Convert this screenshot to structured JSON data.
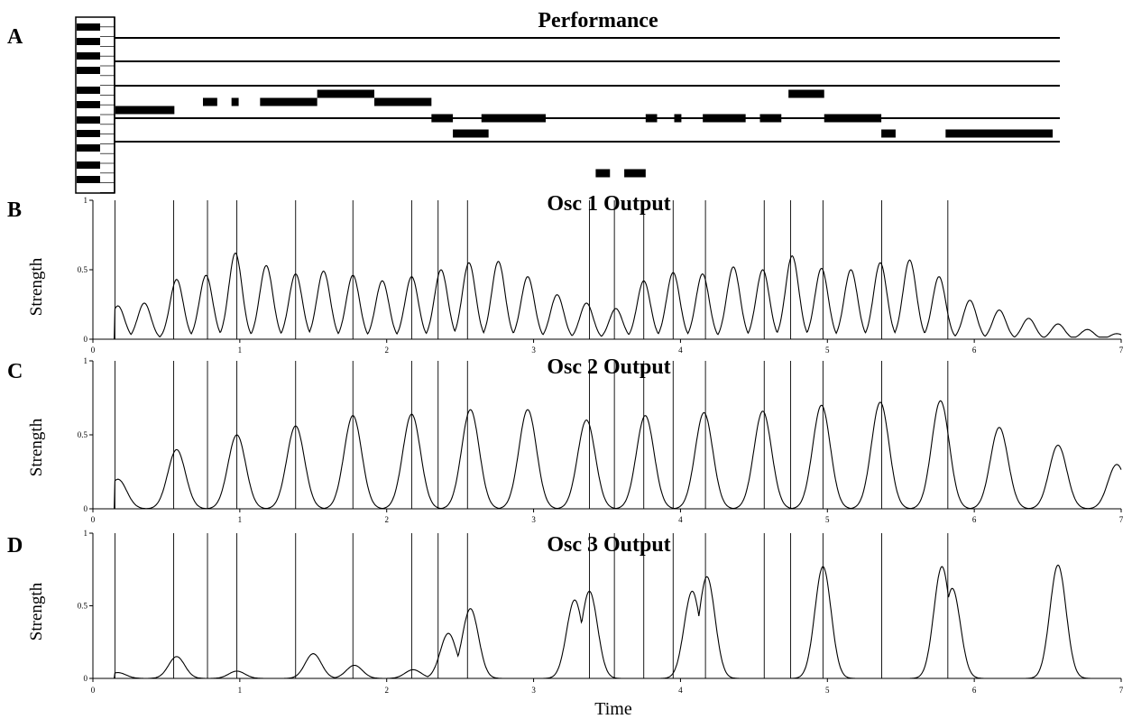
{
  "chart_data": [
    {
      "panel": "A",
      "type": "piano-roll",
      "title": "Performance",
      "notes": [
        {
          "pitch": 2,
          "start": -0.15,
          "end": 0.4
        },
        {
          "pitch": 1,
          "start": 0.6,
          "end": 0.7
        },
        {
          "pitch": 1,
          "start": 0.8,
          "end": 0.85
        },
        {
          "pitch": 1,
          "start": 1.0,
          "end": 1.4
        },
        {
          "pitch": 0,
          "start": 1.4,
          "end": 1.8
        },
        {
          "pitch": 1,
          "start": 1.8,
          "end": 2.2
        },
        {
          "pitch": 4,
          "start": 2.2,
          "end": 2.35
        },
        {
          "pitch": 6,
          "start": 2.35,
          "end": 2.6
        },
        {
          "pitch": 4,
          "start": 2.55,
          "end": 3.0
        },
        {
          "pitch": 8,
          "start": 3.35,
          "end": 3.45
        },
        {
          "pitch": 8,
          "start": 3.55,
          "end": 3.7
        },
        {
          "pitch": 4,
          "start": 3.7,
          "end": 3.78
        },
        {
          "pitch": 4,
          "start": 3.9,
          "end": 3.95
        },
        {
          "pitch": 4,
          "start": 4.1,
          "end": 4.4
        },
        {
          "pitch": 4,
          "start": 4.5,
          "end": 4.65
        },
        {
          "pitch": 0,
          "start": 4.7,
          "end": 4.95
        },
        {
          "pitch": 4,
          "start": 4.95,
          "end": 5.35
        },
        {
          "pitch": 6,
          "start": 5.35,
          "end": 5.45
        },
        {
          "pitch": 6,
          "start": 5.8,
          "end": 6.55
        }
      ]
    },
    {
      "panel": "B",
      "type": "line",
      "title": "Osc 1 Output",
      "ylabel": "Strength",
      "xlim": [
        0,
        7
      ],
      "ylim": [
        0,
        1
      ],
      "yticks": [
        "0",
        "0.5",
        "1"
      ],
      "xticks": [
        "0",
        "1",
        "2",
        "3",
        "4",
        "5",
        "6",
        "7"
      ],
      "onsets": [
        0.15,
        0.55,
        0.78,
        0.98,
        1.38,
        1.77,
        2.17,
        2.35,
        2.55,
        3.38,
        3.55,
        3.75,
        3.95,
        4.17,
        4.57,
        4.75,
        4.97,
        5.37,
        5.82
      ],
      "peaks": [
        {
          "x": 0.17,
          "y": 0.24
        },
        {
          "x": 0.35,
          "y": 0.26
        },
        {
          "x": 0.57,
          "y": 0.43
        },
        {
          "x": 0.77,
          "y": 0.46
        },
        {
          "x": 0.97,
          "y": 0.62
        },
        {
          "x": 1.18,
          "y": 0.53
        },
        {
          "x": 1.38,
          "y": 0.47
        },
        {
          "x": 1.57,
          "y": 0.49
        },
        {
          "x": 1.77,
          "y": 0.46
        },
        {
          "x": 1.97,
          "y": 0.42
        },
        {
          "x": 2.17,
          "y": 0.45
        },
        {
          "x": 2.37,
          "y": 0.5
        },
        {
          "x": 2.56,
          "y": 0.55
        },
        {
          "x": 2.76,
          "y": 0.56
        },
        {
          "x": 2.96,
          "y": 0.45
        },
        {
          "x": 3.16,
          "y": 0.32
        },
        {
          "x": 3.36,
          "y": 0.26
        },
        {
          "x": 3.55,
          "y": 0.12
        },
        {
          "x": 3.56,
          "y": 0.22
        },
        {
          "x": 3.75,
          "y": 0.42
        },
        {
          "x": 3.95,
          "y": 0.48
        },
        {
          "x": 4.15,
          "y": 0.47
        },
        {
          "x": 4.36,
          "y": 0.52
        },
        {
          "x": 4.56,
          "y": 0.5
        },
        {
          "x": 4.76,
          "y": 0.6
        },
        {
          "x": 4.96,
          "y": 0.51
        },
        {
          "x": 5.16,
          "y": 0.5
        },
        {
          "x": 5.36,
          "y": 0.55
        },
        {
          "x": 5.56,
          "y": 0.57
        },
        {
          "x": 5.76,
          "y": 0.45
        },
        {
          "x": 5.97,
          "y": 0.28
        },
        {
          "x": 6.17,
          "y": 0.21
        },
        {
          "x": 6.37,
          "y": 0.15
        },
        {
          "x": 6.57,
          "y": 0.11
        },
        {
          "x": 6.77,
          "y": 0.07
        },
        {
          "x": 6.97,
          "y": 0.04
        }
      ]
    },
    {
      "panel": "C",
      "type": "line",
      "title": "Osc 2 Output",
      "ylabel": "Strength",
      "xlim": [
        0,
        7
      ],
      "ylim": [
        0,
        1
      ],
      "yticks": [
        "0",
        "0.5",
        "1"
      ],
      "xticks": [
        "0",
        "1",
        "2",
        "3",
        "4",
        "5",
        "6",
        "7"
      ],
      "onsets": [
        0.15,
        0.55,
        0.78,
        0.98,
        1.38,
        1.77,
        2.17,
        2.35,
        2.55,
        3.38,
        3.55,
        3.75,
        3.95,
        4.17,
        4.57,
        4.75,
        4.97,
        5.37,
        5.82
      ],
      "peaks": [
        {
          "x": 0.17,
          "y": 0.2
        },
        {
          "x": 0.57,
          "y": 0.4
        },
        {
          "x": 0.98,
          "y": 0.5
        },
        {
          "x": 1.38,
          "y": 0.56
        },
        {
          "x": 1.77,
          "y": 0.63
        },
        {
          "x": 2.17,
          "y": 0.64
        },
        {
          "x": 2.57,
          "y": 0.67
        },
        {
          "x": 2.96,
          "y": 0.67
        },
        {
          "x": 3.36,
          "y": 0.6
        },
        {
          "x": 3.76,
          "y": 0.63
        },
        {
          "x": 4.16,
          "y": 0.65
        },
        {
          "x": 4.56,
          "y": 0.66
        },
        {
          "x": 4.96,
          "y": 0.7
        },
        {
          "x": 5.36,
          "y": 0.72
        },
        {
          "x": 5.77,
          "y": 0.73
        },
        {
          "x": 6.17,
          "y": 0.55
        },
        {
          "x": 6.57,
          "y": 0.43
        },
        {
          "x": 6.97,
          "y": 0.3
        }
      ]
    },
    {
      "panel": "D",
      "type": "line",
      "title": "Osc 3 Output",
      "ylabel": "Strength",
      "xlim": [
        0,
        7
      ],
      "ylim": [
        0,
        1
      ],
      "yticks": [
        "0",
        "0.5",
        "1"
      ],
      "xticks": [
        "0",
        "1",
        "2",
        "3",
        "4",
        "5",
        "6",
        "7"
      ],
      "xlabel": "Time",
      "onsets": [
        0.15,
        0.55,
        0.78,
        0.98,
        1.38,
        1.77,
        2.17,
        2.35,
        2.55,
        3.38,
        3.55,
        3.75,
        3.95,
        4.17,
        4.57,
        4.75,
        4.97,
        5.37,
        5.82
      ],
      "peaks": [
        {
          "x": 0.17,
          "y": 0.04
        },
        {
          "x": 0.57,
          "y": 0.15
        },
        {
          "x": 0.98,
          "y": 0.05
        },
        {
          "x": 1.5,
          "y": 0.17
        },
        {
          "x": 1.78,
          "y": 0.09
        },
        {
          "x": 2.18,
          "y": 0.06
        },
        {
          "x": 2.42,
          "y": 0.31
        },
        {
          "x": 2.57,
          "y": 0.48
        },
        {
          "x": 3.28,
          "y": 0.54
        },
        {
          "x": 3.38,
          "y": 0.6
        },
        {
          "x": 4.08,
          "y": 0.6
        },
        {
          "x": 4.18,
          "y": 0.7
        },
        {
          "x": 4.97,
          "y": 0.77
        },
        {
          "x": 5.78,
          "y": 0.77
        },
        {
          "x": 5.85,
          "y": 0.62
        },
        {
          "x": 6.57,
          "y": 0.78
        }
      ]
    }
  ]
}
